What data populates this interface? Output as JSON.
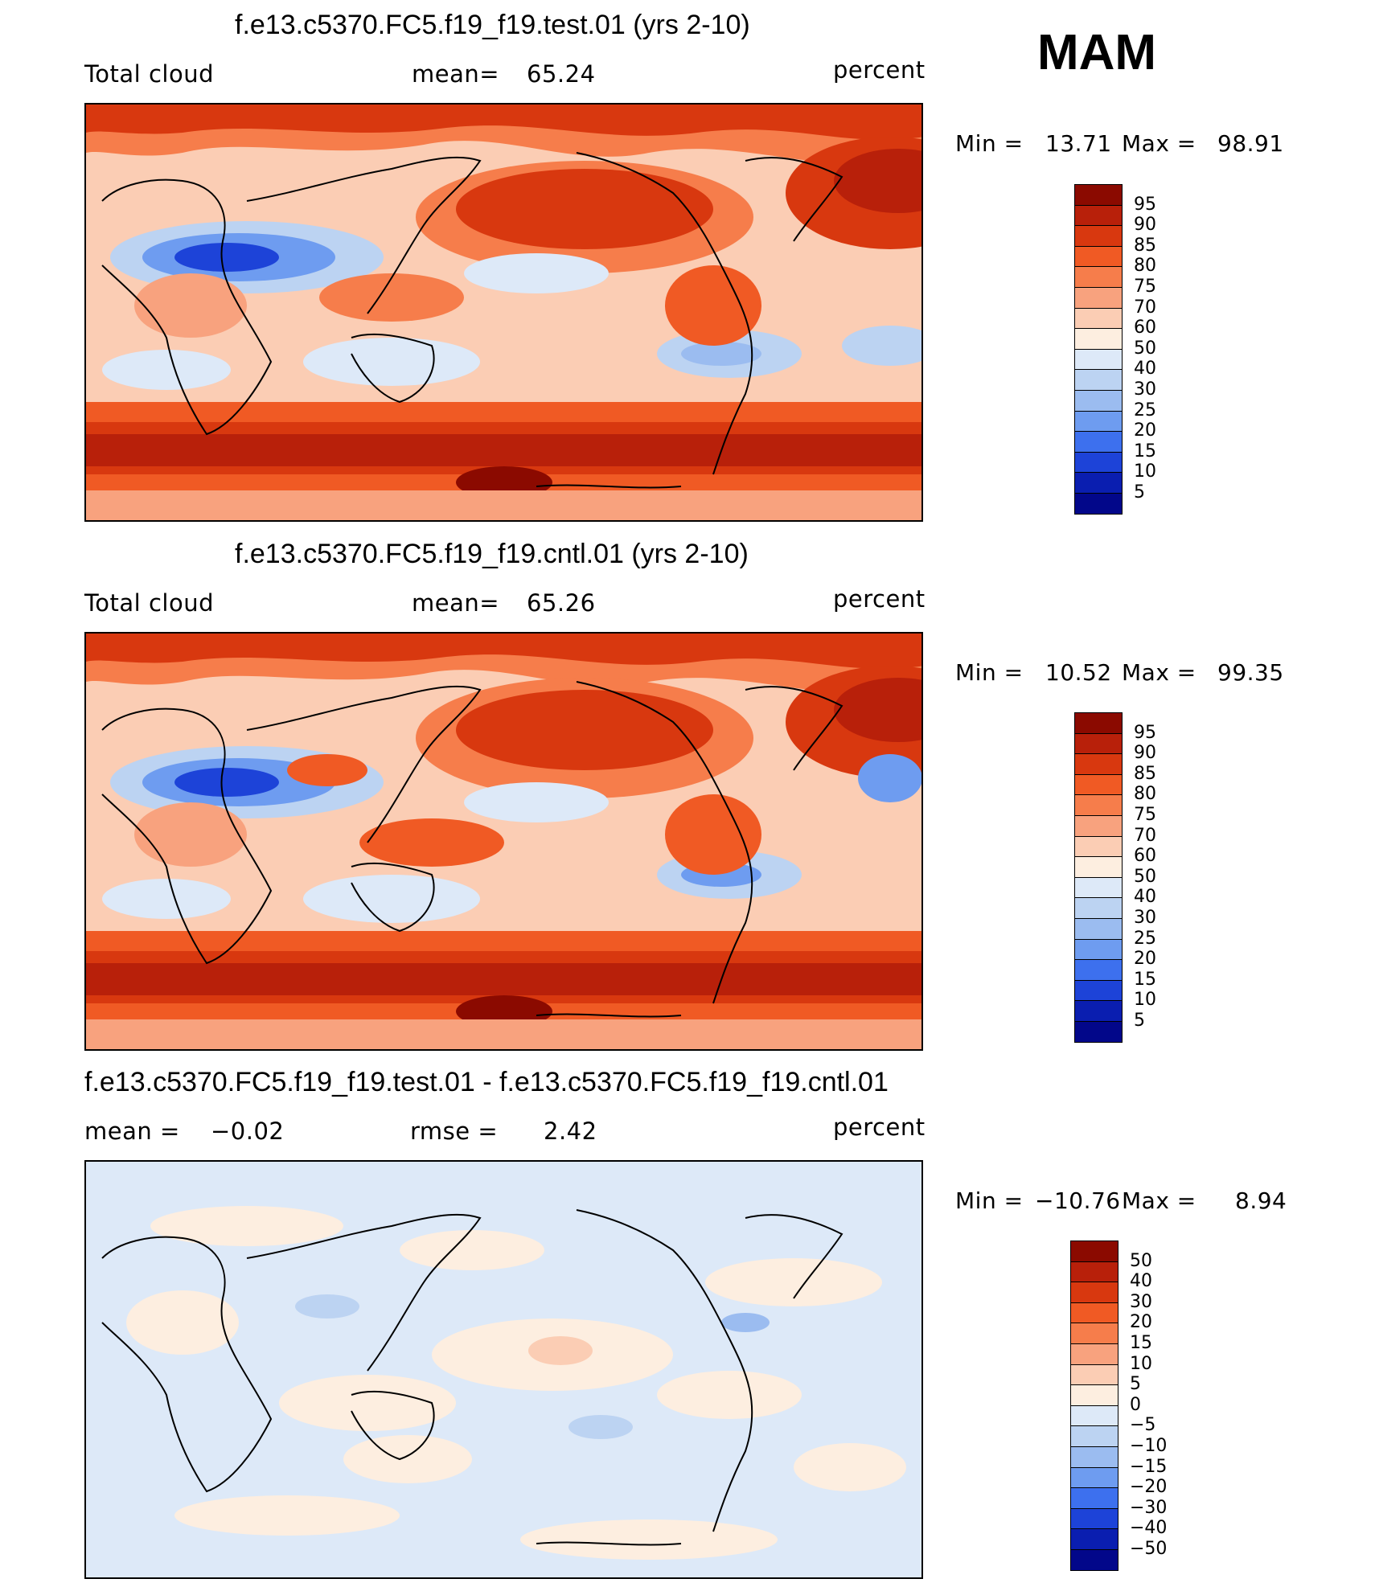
{
  "season": "MAM",
  "colors": {
    "map_outline": "#000000",
    "mean_bg_test": "#f3a07f",
    "mean_bg_diff": "#dce9f8"
  },
  "panels": [
    {
      "title": "f.e13.c5370.FC5.f19_f19.test.01 (yrs 2-10)",
      "left_label": "Total cloud",
      "mid_label": "mean=",
      "mid_value": "65.24",
      "units": "percent",
      "min_label": "Min =",
      "min_value": "13.71",
      "max_label": "Max =",
      "max_value": "98.91"
    },
    {
      "title": "f.e13.c5370.FC5.f19_f19.cntl.01 (yrs 2-10)",
      "left_label": "Total cloud",
      "mid_label": "mean=",
      "mid_value": "65.26",
      "units": "percent",
      "min_label": "Min =",
      "min_value": "10.52",
      "max_label": "Max =",
      "max_value": "99.35"
    },
    {
      "title": "f.e13.c5370.FC5.f19_f19.test.01 - f.e13.c5370.FC5.f19_f19.cntl.01",
      "left_label": "mean =",
      "left_value": "−0.02",
      "mid_label": "rmse =",
      "mid_value": "2.42",
      "units": "percent",
      "min_label": "Min =",
      "min_value": "−10.76",
      "max_label": "Max =",
      "max_value": "8.94"
    }
  ],
  "colorbars": {
    "cloud": {
      "levels": [
        "95",
        "90",
        "85",
        "80",
        "75",
        "70",
        "60",
        "50",
        "40",
        "30",
        "25",
        "20",
        "15",
        "10",
        "5"
      ],
      "colors": [
        "#8b0a00",
        "#b8200a",
        "#d8380f",
        "#f05a24",
        "#f67d4b",
        "#f8a27e",
        "#fbcdb4",
        "#fdeee0",
        "#dde9f8",
        "#bcd3f2",
        "#9bbcf0",
        "#6e9cf0",
        "#3d70ee",
        "#1d43d8",
        "#0a1eb0",
        "#02078a"
      ]
    },
    "diff": {
      "levels": [
        "50",
        "40",
        "30",
        "20",
        "15",
        "10",
        "5",
        "0",
        "−5",
        "−10",
        "−15",
        "−20",
        "−30",
        "−40",
        "−50"
      ],
      "colors": [
        "#8b0a00",
        "#b8200a",
        "#d8380f",
        "#f05a24",
        "#f67d4b",
        "#f8a27e",
        "#fbcdb4",
        "#fdeee0",
        "#dde9f8",
        "#bcd3f2",
        "#9bbcf0",
        "#6e9cf0",
        "#3d70ee",
        "#1d43d8",
        "#0a1eb0",
        "#02078a"
      ]
    }
  }
}
